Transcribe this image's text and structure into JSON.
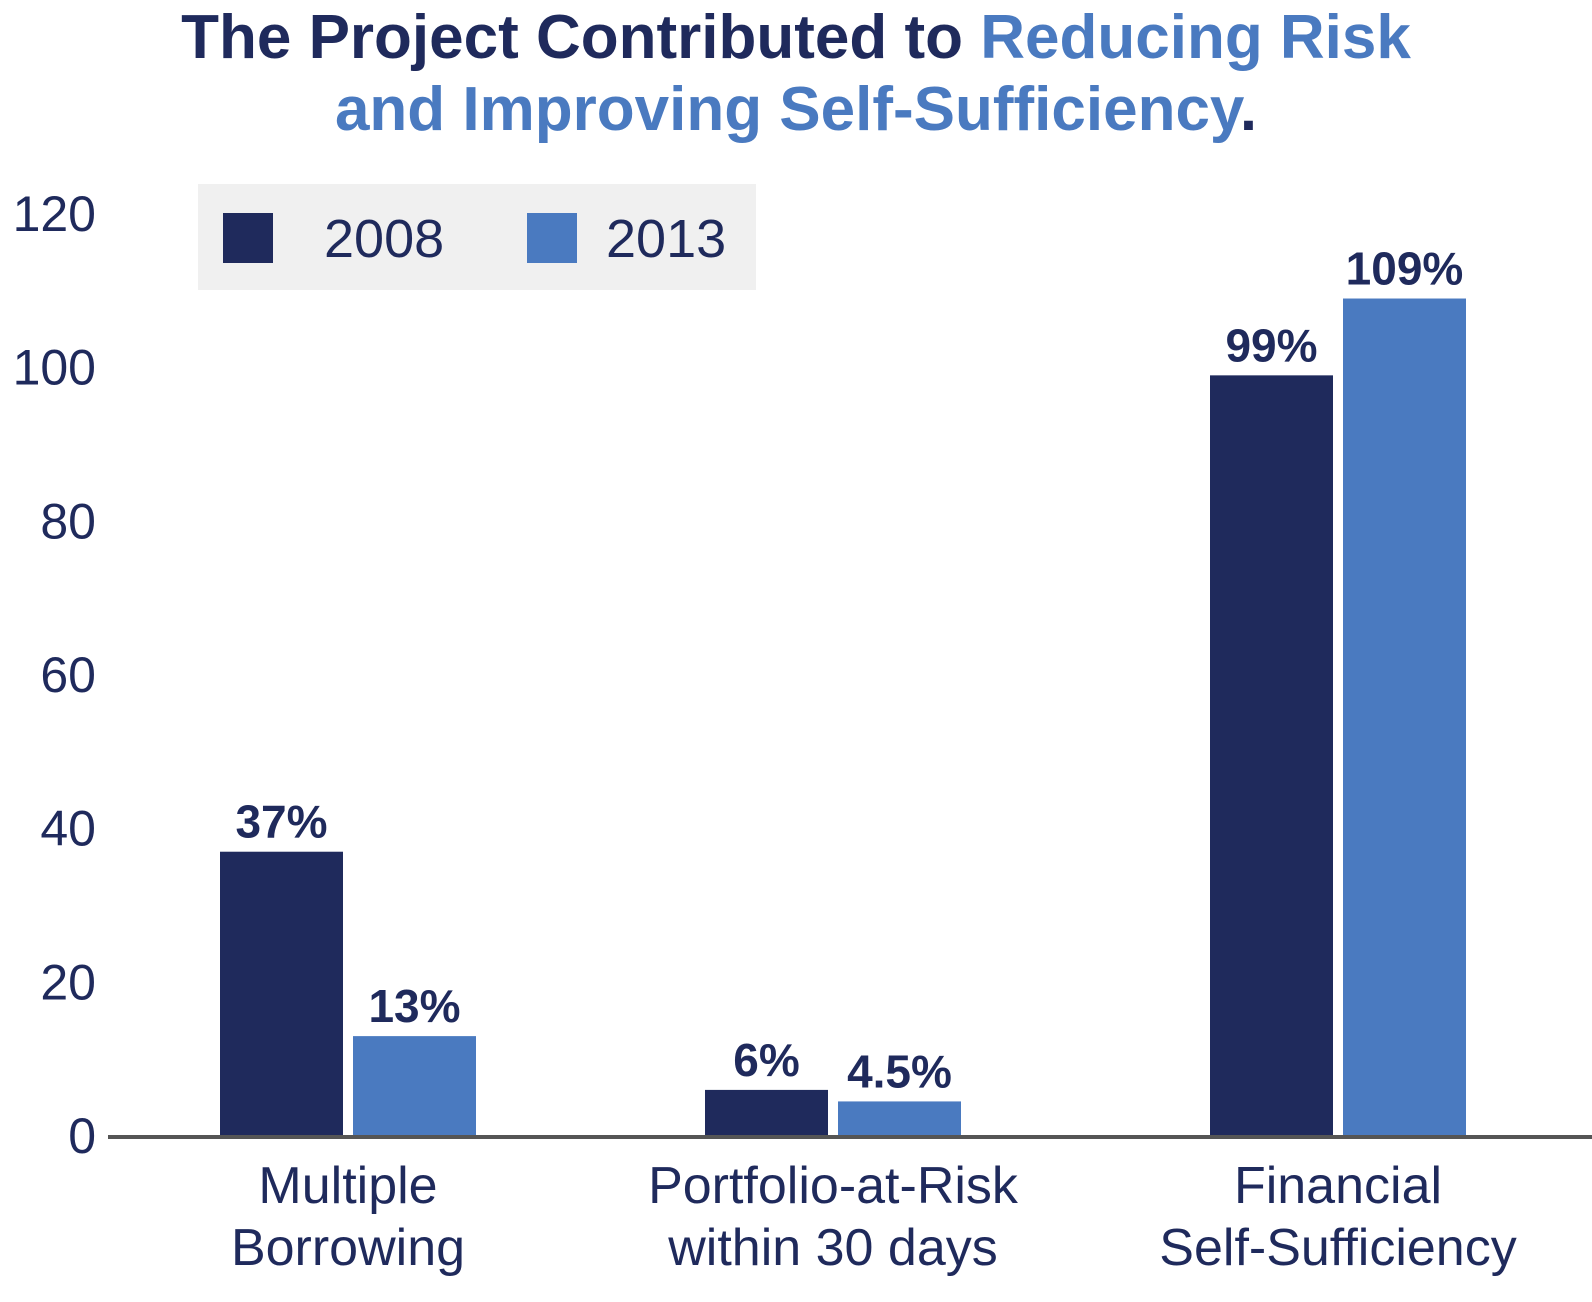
{
  "title": {
    "part1": "The Project Contributed to ",
    "part2": "Reducing Risk",
    "part3": "and Improving Self-Sufficiency",
    "part4": "."
  },
  "colors": {
    "series_2008": "#1f2a5c",
    "series_2013": "#4a7ac0",
    "axis": "#555555",
    "legend_bg": "#f0f0f0",
    "text": "#1f2a5c",
    "title_highlight": "#4a7ac0"
  },
  "chart_data": {
    "type": "bar",
    "title": "The Project Contributed to Reducing Risk and Improving Self-Sufficiency.",
    "categories": [
      [
        "Multiple",
        "Borrowing"
      ],
      [
        "Portfolio-at-Risk",
        "within 30 days"
      ],
      [
        "Financial",
        "Self-Sufficiency"
      ]
    ],
    "series": [
      {
        "name": "2008",
        "values": [
          37,
          6,
          99
        ],
        "labels": [
          "37%",
          "6%",
          "99%"
        ]
      },
      {
        "name": "2013",
        "values": [
          13,
          4.5,
          109
        ],
        "labels": [
          "13%",
          "4.5%",
          "109%"
        ]
      }
    ],
    "yticks": [
      0,
      20,
      40,
      60,
      80,
      100,
      120
    ],
    "ylim": [
      0,
      120
    ],
    "xlabel": "",
    "ylabel": "",
    "grid": false,
    "legend": "top-left"
  }
}
